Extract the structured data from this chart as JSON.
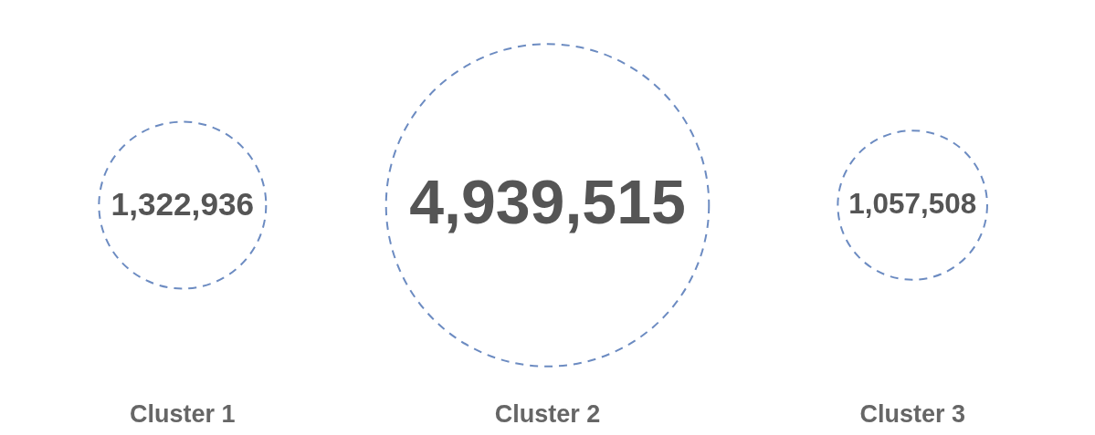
{
  "chart_data": {
    "type": "other",
    "categories": [
      "Cluster 1",
      "Cluster 2",
      "Cluster 3"
    ],
    "values": [
      1322936,
      4939515,
      1057508
    ],
    "color": "#2e5ba8",
    "value_labels": [
      "1,322,936",
      "4,939,515",
      "1,057,508"
    ]
  }
}
